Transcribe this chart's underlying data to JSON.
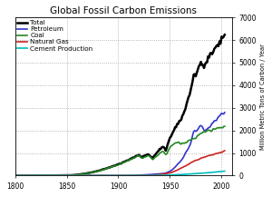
{
  "title": "Global Fossil Carbon Emissions",
  "ylabel": "Million Metric Tons of Carbon / Year",
  "xlim": [
    1800,
    2010
  ],
  "ylim": [
    0,
    7000
  ],
  "yticks": [
    0,
    1000,
    2000,
    3000,
    4000,
    5000,
    6000,
    7000
  ],
  "xticks": [
    1800,
    1850,
    1900,
    1950,
    2000
  ],
  "legend": [
    {
      "label": "Total",
      "color": "#000000",
      "lw": 1.8
    },
    {
      "label": "Petroleum",
      "color": "#3333cc",
      "lw": 1.2
    },
    {
      "label": "Coal",
      "color": "#228822",
      "lw": 1.2
    },
    {
      "label": "Natural Gas",
      "color": "#cc2222",
      "lw": 1.2
    },
    {
      "label": "Cement Production",
      "color": "#00bbbb",
      "lw": 1.2
    }
  ],
  "background_color": "#ffffff",
  "grid_color": "#999999"
}
